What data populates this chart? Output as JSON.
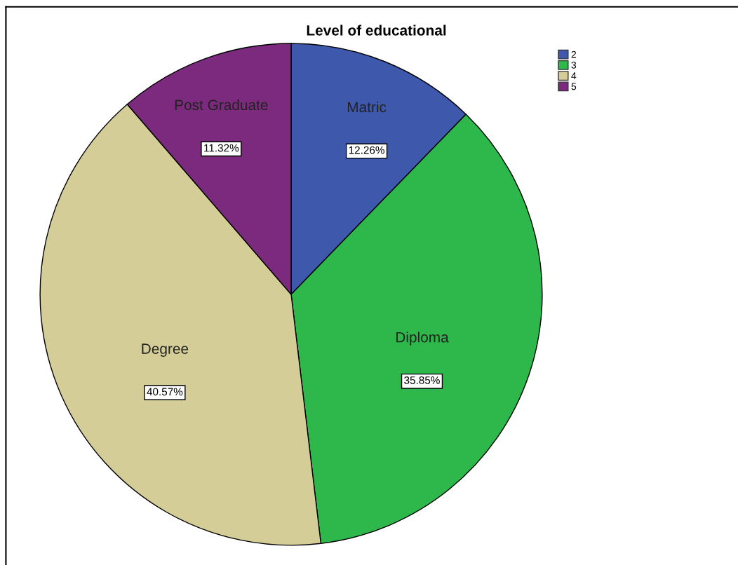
{
  "chart_data": {
    "type": "pie",
    "title": "Level of educational",
    "categories": [
      "2",
      "3",
      "4",
      "5"
    ],
    "values": [
      12.26,
      35.85,
      40.57,
      11.32
    ],
    "value_labels": [
      "12.26%",
      "35.85%",
      "40.57%",
      "11.32%"
    ],
    "colors": [
      "#3e58ac",
      "#2eb84b",
      "#d4cd98",
      "#7b2a7d"
    ],
    "annotations": [
      {
        "text": "Matric",
        "x": "2"
      },
      {
        "text": "Diploma",
        "x": "3"
      },
      {
        "text": "Degree",
        "x": "4"
      },
      {
        "text": "Post Graduate",
        "x": "5"
      }
    ],
    "legend": "top right"
  }
}
